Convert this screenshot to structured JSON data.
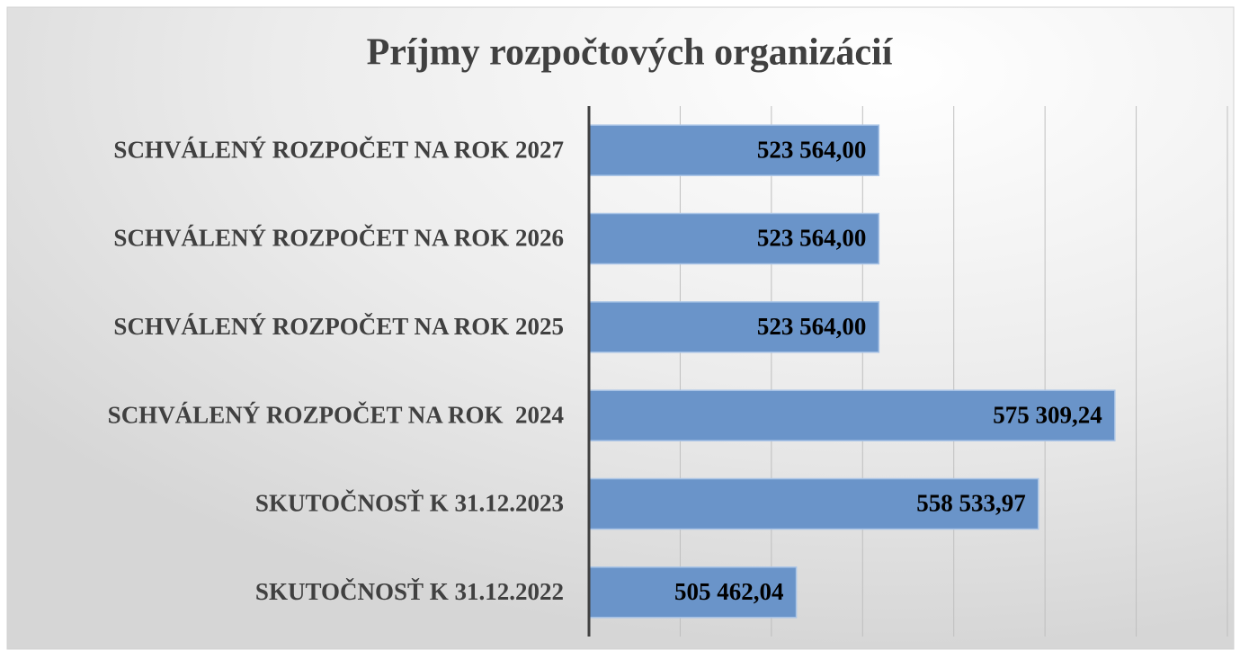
{
  "chart_data": {
    "type": "bar",
    "orientation": "horizontal",
    "title": "Príjmy rozpočtových organizácií",
    "categories": [
      "SCHVÁLENÝ ROZPOČET NA ROK 2027",
      "SCHVÁLENÝ ROZPOČET NA ROK 2026",
      "SCHVÁLENÝ ROZPOČET NA ROK 2025",
      "SCHVÁLENÝ ROZPOČET NA ROK  2024",
      "SKUTOČNOSŤ K 31.12.2023",
      "SKUTOČNOSŤ K 31.12.2022"
    ],
    "values": [
      523564,
      523564,
      523564,
      575309.24,
      558533.97,
      505462.04
    ],
    "value_labels": [
      "523 564,00",
      "523 564,00",
      "523 564,00",
      "575 309,24",
      "558 533,97",
      "505 462,04"
    ],
    "color": "#6a94c9",
    "xlim": [
      460000,
      600000
    ],
    "xticks": [
      460000,
      480000,
      500000,
      520000,
      540000,
      560000,
      580000,
      600000
    ],
    "grid": true
  }
}
